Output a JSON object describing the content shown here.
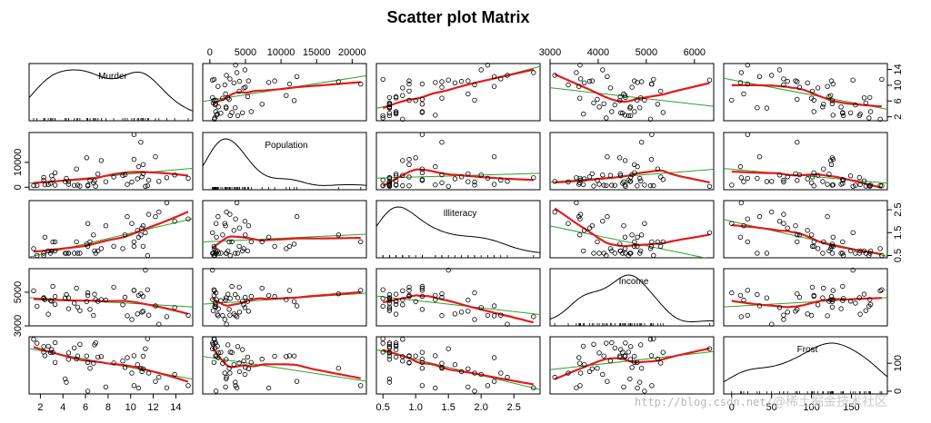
{
  "chart_data": {
    "type": "scatter_matrix",
    "title": "Scatter plot Matrix",
    "variables": [
      "Murder",
      "Population",
      "Illiteracy",
      "Income",
      "Frost"
    ],
    "axis_ranges": {
      "Murder": [
        1,
        15.5
      ],
      "Population": [
        -1000,
        22000
      ],
      "Illiteracy": [
        0.4,
        2.9
      ],
      "Income": [
        3000,
        6400
      ],
      "Frost": [
        -10,
        195
      ]
    },
    "ticks": {
      "Murder": [
        2,
        4,
        6,
        8,
        10,
        12,
        14
      ],
      "Murder_right": [
        2,
        6,
        10,
        14
      ],
      "Murder_right_labels": [
        "2",
        "6",
        "10",
        "14"
      ],
      "Population": [
        0,
        5000,
        10000,
        15000,
        20000
      ],
      "Population_left": [
        0,
        10000
      ],
      "Illiteracy": [
        0.5,
        1.0,
        1.5,
        2.0,
        2.5
      ],
      "Illiteracy_labels": [
        "0.5",
        "1.0",
        "1.5",
        "2.0",
        "2.5"
      ],
      "Income_top": [
        3000,
        4000,
        5000,
        6000
      ],
      "Income_left": [
        3000,
        5000
      ],
      "Frost_right": [
        0,
        100
      ],
      "Frost_bottom": [
        0,
        50,
        100,
        150
      ]
    },
    "tick_label_text": {
      "murder_bottom": [
        "2",
        "4",
        "6",
        "8",
        "10",
        "12",
        "14"
      ],
      "murder_right": [
        "2",
        "6",
        "10",
        "14"
      ],
      "population_top": [
        "0",
        "5000",
        "10000",
        "15000",
        "20000"
      ],
      "population_left": [
        "0",
        "10000"
      ],
      "illiteracy_bottom": [
        "0.5",
        "1.0",
        "1.5",
        "2.0",
        "2.5"
      ],
      "illiteracy_right": [
        "0.5",
        "1.5",
        "2.5"
      ],
      "income_top": [
        "3000",
        "4000",
        "5000",
        "6000"
      ],
      "income_left": [
        "3000",
        "5000"
      ],
      "frost_right": [
        "0",
        "100"
      ],
      "frost_bottom": [
        "0",
        "50",
        "100",
        "150"
      ]
    },
    "data": {
      "Murder": [
        15.1,
        11.3,
        7.8,
        10.1,
        10.3,
        6.8,
        3.1,
        6.2,
        10.7,
        13.9,
        6.2,
        5.3,
        10.3,
        7.1,
        2.3,
        4.5,
        10.6,
        13.2,
        2.7,
        8.5,
        3.3,
        11.1,
        2.3,
        12.5,
        9.3,
        5.0,
        2.9,
        11.5,
        3.3,
        5.2,
        9.7,
        10.9,
        11.1,
        1.4,
        7.4,
        6.4,
        4.2,
        6.1,
        2.4,
        11.6,
        1.7,
        11.0,
        12.2,
        4.5,
        5.5,
        9.5,
        4.3,
        6.7,
        3.0,
        6.9
      ],
      "Population": [
        3615,
        365,
        2212,
        2110,
        21198,
        2541,
        3100,
        579,
        8277,
        4931,
        868,
        813,
        11197,
        5313,
        2861,
        2280,
        3387,
        3806,
        1058,
        4122,
        5814,
        9111,
        3921,
        2341,
        4767,
        746,
        1544,
        590,
        812,
        7333,
        1144,
        18076,
        5441,
        637,
        10735,
        2715,
        2284,
        11860,
        931,
        2816,
        681,
        4173,
        12237,
        1203,
        472,
        4981,
        3559,
        1799,
        4589,
        376
      ],
      "Illiteracy": [
        2.1,
        1.5,
        1.8,
        1.9,
        1.1,
        0.7,
        1.1,
        0.9,
        1.3,
        2.0,
        1.9,
        0.6,
        0.9,
        0.7,
        0.5,
        0.6,
        1.6,
        2.8,
        0.7,
        0.9,
        1.1,
        0.9,
        0.6,
        2.4,
        0.8,
        0.6,
        0.6,
        0.5,
        0.7,
        1.1,
        2.2,
        1.4,
        1.8,
        0.8,
        0.8,
        1.1,
        0.6,
        1.0,
        1.3,
        2.3,
        0.5,
        1.7,
        2.2,
        0.6,
        0.6,
        1.4,
        0.6,
        1.4,
        0.7,
        0.6
      ],
      "Income": [
        3624,
        6315,
        4530,
        3378,
        5114,
        4884,
        5348,
        4809,
        4815,
        4091,
        4963,
        4119,
        5107,
        4458,
        4628,
        4669,
        3712,
        3545,
        3694,
        5299,
        4755,
        4751,
        4675,
        3098,
        4254,
        4347,
        4508,
        5149,
        4281,
        5237,
        3601,
        4903,
        3875,
        5087,
        4561,
        3983,
        4660,
        4449,
        4558,
        3635,
        4167,
        3821,
        4188,
        4022,
        3907,
        4701,
        4864,
        3617,
        4468,
        4566
      ],
      "Frost": [
        20,
        152,
        15,
        65,
        20,
        166,
        139,
        103,
        11,
        60,
        0,
        126,
        127,
        122,
        140,
        114,
        95,
        12,
        161,
        101,
        103,
        125,
        160,
        50,
        108,
        155,
        139,
        188,
        174,
        115,
        120,
        82,
        80,
        186,
        124,
        82,
        44,
        126,
        127,
        65,
        172,
        70,
        35,
        137,
        168,
        85,
        32,
        100,
        149,
        173
      ]
    },
    "annotations": {
      "watermark": "http://blog.csdn.net/",
      "watermark2": "@稀土掘金技术社区"
    }
  }
}
